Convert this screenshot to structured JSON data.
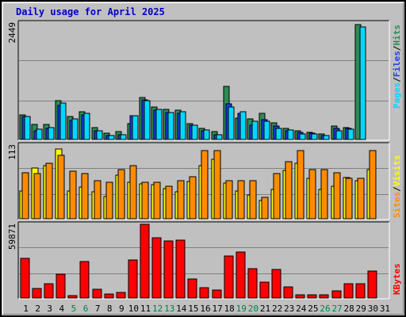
{
  "chart_data": {
    "type": "bar",
    "title": "Daily usage for April 2025",
    "categories": [
      "1",
      "2",
      "3",
      "4",
      "5",
      "6",
      "7",
      "8",
      "9",
      "10",
      "11",
      "12",
      "13",
      "14",
      "15",
      "16",
      "17",
      "18",
      "19",
      "20",
      "21",
      "22",
      "23",
      "24",
      "25",
      "26",
      "27",
      "28",
      "29",
      "30",
      "31"
    ],
    "weekend_days": [
      "5",
      "6",
      "12",
      "13",
      "19",
      "20",
      "26",
      "27"
    ],
    "colors": {
      "hits": "#2e8b57",
      "files": "#1e3cff",
      "pages": "#00d9ff",
      "visits": "#ffff00",
      "sites": "#ff8c00",
      "kbytes": "#ff0000",
      "weekday_label": "#000000",
      "weekend_label": "#008040",
      "title": "#0000cc",
      "plot_background": "#c0c0c0",
      "grid": "#808080"
    },
    "panels": [
      {
        "name": "hits-files-pages",
        "ymax_label": "2449",
        "ymax": 2449,
        "legend": [
          {
            "text": "Pages",
            "color": "#00d9ff"
          },
          {
            "text": "/",
            "color": "#000000"
          },
          {
            "text": "Files",
            "color": "#1e3cff"
          },
          {
            "text": "/",
            "color": "#000000"
          },
          {
            "text": "Hits",
            "color": "#2e8b57"
          }
        ],
        "series": [
          {
            "name": "Hits",
            "color": "#2e8b57",
            "values": [
              515,
              311,
              310,
              811,
              489,
              587,
              251,
              128,
              163,
              333,
              880,
              677,
              627,
              620,
              329,
              240,
              170,
              1122,
              449,
              425,
              546,
              357,
              229,
              180,
              142,
              115,
              285,
              246,
              2424,
              0,
              0
            ]
          },
          {
            "name": "Files",
            "color": "#1e3cff",
            "values": [
              489,
              183,
              240,
              720,
              400,
              518,
              184,
              84,
              107,
              494,
              826,
              612,
              560,
              546,
              301,
              184,
              98,
              757,
              546,
              297,
              422,
              286,
              175,
              158,
              127,
              86,
              238,
              225,
              0,
              0,
              0
            ]
          },
          {
            "name": "Pages",
            "color": "#00d9ff",
            "values": [
              480,
              216,
              244,
              766,
              428,
              548,
              186,
              80,
              104,
              501,
              816,
              636,
              564,
              588,
              298,
              206,
              104,
              680,
              578,
              383,
              391,
              237,
              194,
              120,
              120,
              79,
              188,
              212,
              2365,
              0,
              0
            ]
          }
        ]
      },
      {
        "name": "visits-sites",
        "ymax_label": "113",
        "ymax": 113,
        "legend": [
          {
            "text": "Sites",
            "color": "#ff8c00"
          },
          {
            "text": "/",
            "color": "#000000"
          },
          {
            "text": "Visits",
            "color": "#ffff00"
          }
        ],
        "series": [
          {
            "name": "Visits",
            "color": "#ffff00",
            "values": [
              43,
              78,
              82,
              107,
              43,
              48,
              41,
              34,
              67,
              56,
              53,
              52,
              46,
              41,
              57,
              82,
              91,
              55,
              42,
              37,
              28,
              45,
              74,
              85,
              62,
              45,
              50,
              63,
              58,
              75,
              0
            ]
          },
          {
            "name": "Sites",
            "color": "#ff8c00",
            "values": [
              71,
              69,
              85,
              97,
              73,
              69,
              58,
              56,
              75,
              81,
              56,
              56,
              50,
              58,
              65,
              105,
              104,
              58,
              58,
              58,
              33,
              69,
              88,
              105,
              75,
              75,
              70,
              62,
              62,
              105,
              0
            ]
          }
        ]
      },
      {
        "name": "kbytes",
        "ymax_label": "59871",
        "ymax": 59871,
        "legend": [
          {
            "text": "KBytes",
            "color": "#ff0000"
          }
        ],
        "series": [
          {
            "name": "KBytes",
            "color": "#ff0000",
            "values": [
              32000,
              8000,
              11500,
              19500,
              1800,
              29600,
              7000,
              3100,
              4600,
              31000,
              59871,
              49000,
              46500,
              47000,
              15300,
              8400,
              6500,
              34400,
              37200,
              24100,
              13000,
              23000,
              8700,
              2700,
              2700,
              2700,
              5600,
              11500,
              11500,
              21900,
              0
            ]
          }
        ]
      }
    ]
  }
}
